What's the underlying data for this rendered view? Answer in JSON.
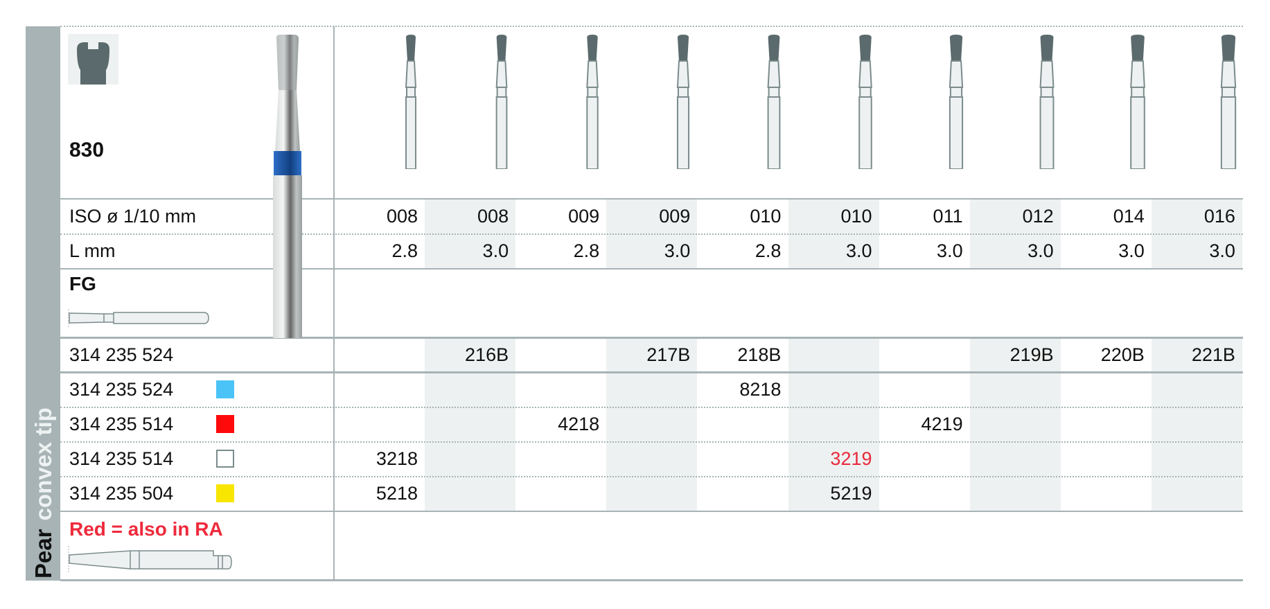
{
  "side_label": {
    "shape": "Pear",
    "subtitle": "convex tip"
  },
  "product": {
    "number": "830",
    "shank_type": "FG",
    "note": "Red = also in RA",
    "note_color": "#ee2a3c"
  },
  "row_labels": {
    "iso": "ISO ø 1/10 mm",
    "length": "L mm"
  },
  "columns": [
    {
      "iso": "008",
      "length": "2.8"
    },
    {
      "iso": "008",
      "length": "3.0"
    },
    {
      "iso": "009",
      "length": "2.8"
    },
    {
      "iso": "009",
      "length": "3.0"
    },
    {
      "iso": "010",
      "length": "2.8"
    },
    {
      "iso": "010",
      "length": "3.0"
    },
    {
      "iso": "011",
      "length": "3.0"
    },
    {
      "iso": "012",
      "length": "3.0"
    },
    {
      "iso": "014",
      "length": "3.0"
    },
    {
      "iso": "016",
      "length": "3.0"
    }
  ],
  "order_rows": [
    {
      "ref": "314 235 524",
      "swatch": null,
      "values": [
        null,
        "216B",
        null,
        "217B",
        "218B",
        null,
        null,
        "219B",
        "220B",
        "221B"
      ]
    },
    {
      "ref": "314 235 524",
      "swatch": "#4bc3f7",
      "values": [
        null,
        null,
        null,
        null,
        "8218",
        null,
        null,
        null,
        null,
        null
      ]
    },
    {
      "ref": "314 235 514",
      "swatch": "#ff0a0a",
      "values": [
        null,
        null,
        "4218",
        null,
        null,
        null,
        "4219",
        null,
        null,
        null
      ]
    },
    {
      "ref": "314 235 514",
      "swatch": "outline",
      "values": [
        "3218",
        null,
        null,
        null,
        null,
        "3219",
        null,
        null,
        null,
        null
      ],
      "red_values": [
        5
      ]
    },
    {
      "ref": "314 235 504",
      "swatch": "#f8e500",
      "values": [
        "5218",
        null,
        null,
        null,
        null,
        "5219",
        null,
        null,
        null,
        null
      ]
    }
  ],
  "icons": {
    "tooth": "tooth-cavity-icon",
    "burr_photo": "diamond-burr-photo",
    "fg_shank": "fg-shank-icon",
    "ra_shank": "ra-shank-icon"
  },
  "colors": {
    "band": "#a7b3b5",
    "shade": "#eef1f1",
    "burr_head": "#5b6a6c",
    "ring": "#1f5fb5",
    "red_value": "#e8293b"
  }
}
